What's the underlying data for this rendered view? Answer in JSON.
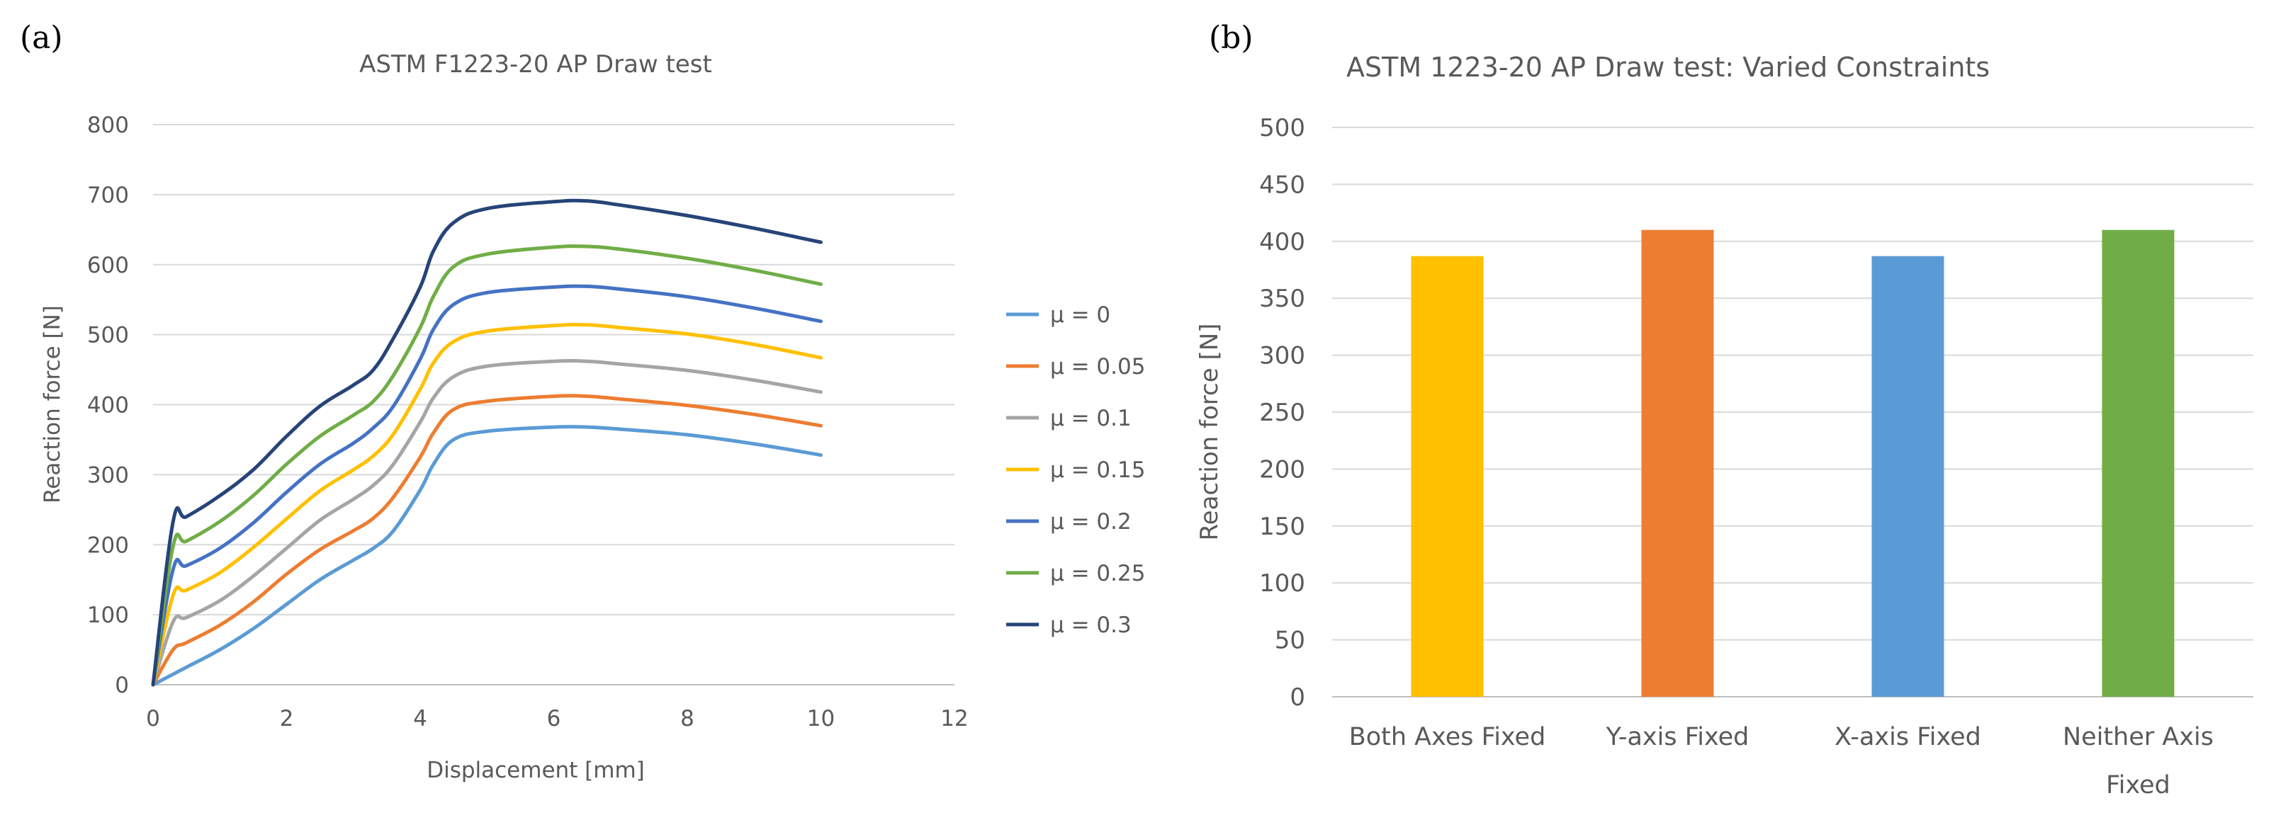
{
  "panels": {
    "a_label": "(a)",
    "b_label": "(b)"
  },
  "chart_data": [
    {
      "type": "line",
      "title": "ASTM F1223-20 AP Draw test",
      "xlabel": "Displacement [mm]",
      "ylabel": "Reaction force [N]",
      "xlim": [
        0,
        12
      ],
      "ylim": [
        0,
        800
      ],
      "x_ticks": [
        0,
        2,
        4,
        6,
        8,
        10,
        12
      ],
      "y_ticks": [
        0,
        100,
        200,
        300,
        400,
        500,
        600,
        700,
        800
      ],
      "grid": "horizontal",
      "legend_position": "right",
      "x": [
        0,
        0.3,
        0.5,
        1,
        1.5,
        2,
        2.5,
        3,
        3.3,
        3.6,
        4,
        4.2,
        4.5,
        5,
        6,
        6.5,
        7,
        8,
        9,
        10
      ],
      "series": [
        {
          "name": "μ = 0",
          "color": "#5B9BD5",
          "values": [
            0,
            15,
            25,
            50,
            80,
            115,
            150,
            178,
            195,
            220,
            278,
            315,
            350,
            362,
            368,
            368,
            365,
            357,
            344,
            328
          ]
        },
        {
          "name": "μ = 0.05",
          "color": "#ED7D31",
          "values": [
            0,
            50,
            60,
            85,
            118,
            158,
            193,
            220,
            238,
            268,
            325,
            360,
            393,
            405,
            412,
            412,
            408,
            399,
            386,
            370
          ]
        },
        {
          "name": "μ = 0.1",
          "color": "#A5A5A5",
          "values": [
            0,
            90,
            96,
            120,
            155,
            195,
            235,
            265,
            285,
            315,
            375,
            410,
            440,
            455,
            462,
            462,
            458,
            449,
            435,
            418
          ]
        },
        {
          "name": "μ = 0.15",
          "color": "#FFC000",
          "values": [
            0,
            128,
            135,
            160,
            196,
            237,
            277,
            307,
            327,
            358,
            422,
            460,
            490,
            505,
            513,
            514,
            510,
            501,
            486,
            467
          ]
        },
        {
          "name": "μ = 0.2",
          "color": "#4472C4",
          "values": [
            0,
            165,
            170,
            195,
            231,
            275,
            315,
            345,
            367,
            398,
            465,
            508,
            543,
            560,
            568,
            569,
            565,
            554,
            538,
            519
          ]
        },
        {
          "name": "μ = 0.25",
          "color": "#70AD47",
          "values": [
            0,
            198,
            205,
            233,
            270,
            315,
            355,
            385,
            405,
            442,
            510,
            555,
            597,
            615,
            625,
            626,
            622,
            609,
            592,
            572
          ]
        },
        {
          "name": "μ = 0.3",
          "color": "#264478",
          "values": [
            0,
            233,
            240,
            270,
            307,
            355,
            398,
            428,
            450,
            495,
            568,
            620,
            660,
            680,
            690,
            691,
            685,
            670,
            652,
            632
          ]
        }
      ]
    },
    {
      "type": "bar",
      "title": "ASTM 1223-20 AP Draw test: Varied Constraints",
      "xlabel": "",
      "ylabel": "Reaction force [N]",
      "ylim": [
        0,
        500
      ],
      "y_ticks": [
        0,
        50,
        100,
        150,
        200,
        250,
        300,
        350,
        400,
        450,
        500
      ],
      "grid": "horizontal",
      "categories": [
        {
          "line1": "Both Axes Fixed",
          "line2": ""
        },
        {
          "line1": "Y-axis Fixed",
          "line2": ""
        },
        {
          "line1": "X-axis Fixed",
          "line2": ""
        },
        {
          "line1": "Neither Axis",
          "line2": "Fixed"
        }
      ],
      "values": [
        387,
        410,
        387,
        410
      ],
      "colors": [
        "#FFC000",
        "#ED7D31",
        "#5B9BD5",
        "#70AD47"
      ]
    }
  ]
}
